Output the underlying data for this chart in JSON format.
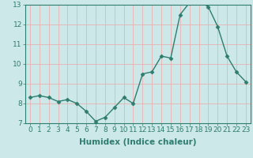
{
  "x": [
    0,
    1,
    2,
    3,
    4,
    5,
    6,
    7,
    8,
    9,
    10,
    11,
    12,
    13,
    14,
    15,
    16,
    17,
    18,
    19,
    20,
    21,
    22,
    23
  ],
  "y": [
    8.3,
    8.4,
    8.3,
    8.1,
    8.2,
    8.0,
    7.6,
    7.1,
    7.3,
    7.8,
    8.3,
    8.0,
    9.5,
    9.6,
    10.4,
    10.3,
    12.5,
    13.1,
    13.2,
    12.9,
    11.9,
    10.4,
    9.6,
    9.1
  ],
  "xlabel": "Humidex (Indice chaleur)",
  "ylim": [
    7,
    13
  ],
  "xlim_min": -0.5,
  "xlim_max": 23.5,
  "yticks": [
    7,
    8,
    9,
    10,
    11,
    12,
    13
  ],
  "xticks": [
    0,
    1,
    2,
    3,
    4,
    5,
    6,
    7,
    8,
    9,
    10,
    11,
    12,
    13,
    14,
    15,
    16,
    17,
    18,
    19,
    20,
    21,
    22,
    23
  ],
  "line_color": "#2e7d6e",
  "marker": "D",
  "marker_size": 2.5,
  "bg_color": "#cce8e8",
  "grid_color": "#e8b0b0",
  "tick_label_fontsize": 6.5,
  "xlabel_fontsize": 7.5,
  "line_width": 1.0
}
